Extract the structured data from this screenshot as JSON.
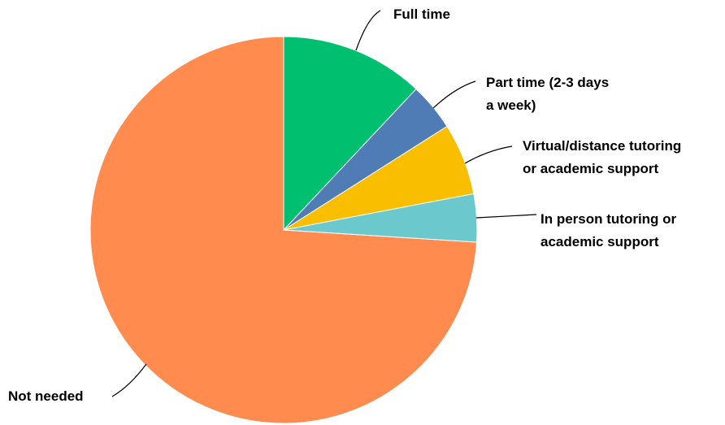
{
  "chart_data": {
    "type": "pie",
    "categories": [
      "Full time",
      "Part time (2-3 days a week)",
      "Virtual/distance tutoring or academic support",
      "In person tutoring or academic support",
      "Not needed"
    ],
    "values": [
      12,
      4,
      6,
      4,
      74
    ],
    "colors": [
      "#00bf6f",
      "#507cb6",
      "#f9be00",
      "#6bc8cd",
      "#ff8b4f"
    ]
  }
}
